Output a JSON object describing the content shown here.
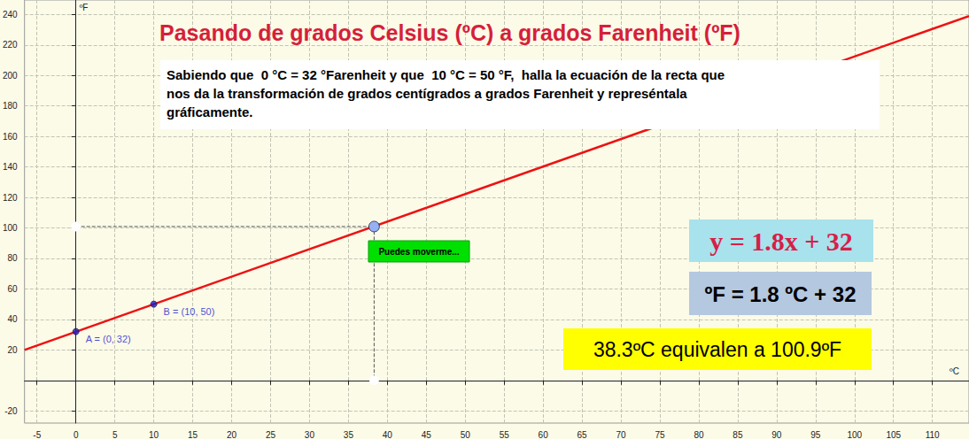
{
  "chart_data": {
    "type": "line",
    "title": "Pasando de grados Celsius (ºC) a grados Farenheit (ºF)",
    "instructions": [
      "Sabiendo que  0 °C = 32 °Farenheit y que  10 °C = 50 °F,  halla la ecuación de la recta que",
      "nos da la transformación de grados centígrados a grados Farenheit y represéntala",
      "gráficamente."
    ],
    "x_label": "ºC",
    "y_label": "ºF",
    "xlim": [
      -6.6,
      114.7
    ],
    "ylim": [
      -28,
      249.5
    ],
    "xticks": [
      -5,
      0,
      5,
      10,
      15,
      20,
      25,
      30,
      35,
      40,
      45,
      50,
      55,
      60,
      65,
      70,
      75,
      80,
      85,
      90,
      95,
      100,
      105,
      110
    ],
    "yticks": [
      -20,
      20,
      40,
      60,
      80,
      100,
      120,
      140,
      160,
      180,
      200,
      220,
      240
    ],
    "grid": true,
    "series": [
      {
        "type": "line",
        "color": "#ee1111",
        "line_style": "solid",
        "x": [
          -6.6,
          114.7
        ],
        "values": [
          20,
          239
        ]
      },
      {
        "type": "line",
        "color": "#555555",
        "line_style": "dashed",
        "marker": "circle",
        "x": [
          0,
          38.3,
          38.3
        ],
        "values": [
          100.9,
          100.9,
          0
        ]
      },
      {
        "type": "scatter",
        "color": "#1a1acc",
        "marker": "circle",
        "x": [
          0,
          10
        ],
        "values": [
          32,
          50
        ],
        "labels": [
          "A = (0, 32)",
          "B = (10, 50)"
        ]
      },
      {
        "type": "scatter",
        "color": "#7a9cf0",
        "marker": "circle",
        "x": [
          38.3
        ],
        "values": [
          100.9
        ]
      }
    ],
    "annotations": [
      "Puedes moverme...",
      "y = 1.8x + 32",
      "ºF = 1.8 ºC + 32",
      "38.3ºC equivalen a 100.9ºF"
    ]
  }
}
